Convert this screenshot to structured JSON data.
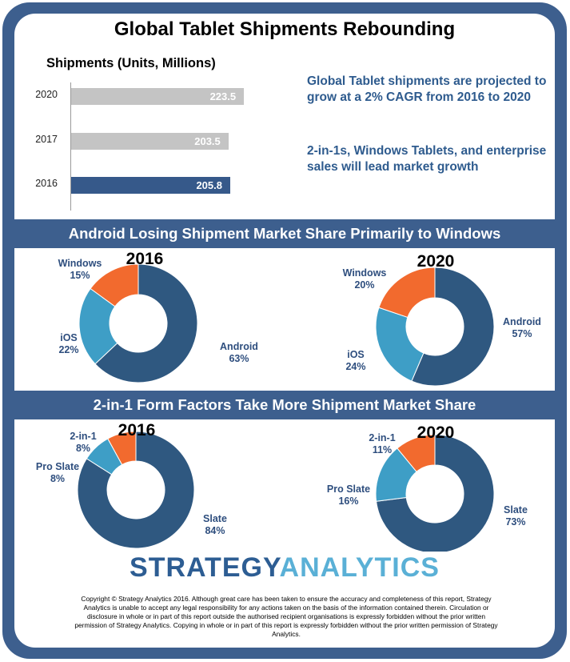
{
  "title": "Global Tablet Shipments Rebounding",
  "shipments": {
    "title": "Shipments (Units, Millions)",
    "bars": [
      {
        "year": "2020",
        "value": 223.5,
        "label": "223.5",
        "color": "#c4c4c4"
      },
      {
        "year": "2017",
        "value": 203.5,
        "label": "203.5",
        "color": "#c4c4c4"
      },
      {
        "year": "2016",
        "value": 205.8,
        "label": "205.8",
        "color": "#36598a"
      }
    ]
  },
  "blurbs": [
    "Global Tablet shipments are projected to grow at a 2% CAGR from 2016 to 2020",
    "2-in-1s, Windows Tablets, and enterprise sales will lead market growth"
  ],
  "section_os": {
    "title": "Android Losing Shipment Market Share Primarily to Windows"
  },
  "section_form": {
    "title": "2-in-1 Form Factors Take More Shipment Market Share"
  },
  "chart_data": [
    {
      "type": "bar",
      "title": "Shipments (Units, Millions)",
      "categories": [
        "2020",
        "2017",
        "2016"
      ],
      "values": [
        223.5,
        203.5,
        205.8
      ]
    },
    {
      "type": "pie",
      "title": "2016",
      "series": [
        {
          "name": "Android",
          "value": 63,
          "label": "63%",
          "color": "#2f5880"
        },
        {
          "name": "iOS",
          "value": 22,
          "label": "22%",
          "color": "#3e9ec6"
        },
        {
          "name": "Windows",
          "value": 15,
          "label": "15%",
          "color": "#f26a2e"
        }
      ]
    },
    {
      "type": "pie",
      "title": "2020",
      "series": [
        {
          "name": "Android",
          "value": 57,
          "label": "57%",
          "color": "#2f5880"
        },
        {
          "name": "iOS",
          "value": 24,
          "label": "24%",
          "color": "#3e9ec6"
        },
        {
          "name": "Windows",
          "value": 20,
          "label": "20%",
          "color": "#f26a2e"
        }
      ]
    },
    {
      "type": "pie",
      "title": "2016",
      "series": [
        {
          "name": "Slate",
          "value": 84,
          "label": "84%",
          "color": "#2f5880"
        },
        {
          "name": "Pro Slate",
          "value": 8,
          "label": "8%",
          "color": "#3e9ec6"
        },
        {
          "name": "2-in-1",
          "value": 8,
          "label": "8%",
          "color": "#f26a2e"
        }
      ]
    },
    {
      "type": "pie",
      "title": "2020",
      "series": [
        {
          "name": "Slate",
          "value": 73,
          "label": "73%",
          "color": "#2f5880"
        },
        {
          "name": "Pro Slate",
          "value": 16,
          "label": "16%",
          "color": "#3e9ec6"
        },
        {
          "name": "2-in-1",
          "value": 11,
          "label": "11%",
          "color": "#f26a2e"
        }
      ]
    }
  ],
  "logo": {
    "part1": "STRATEGY",
    "part2": "ANALYTICS"
  },
  "copyright": "Copyright © Strategy Analytics 2016. Although great care has been taken to ensure the accuracy and completeness of this report, Strategy Analytics is unable to accept any legal responsibility for any actions taken on the basis of the information contained therein. Circulation or disclosure in whole or in part of this report outside the authorised recipient organisations is expressly forbidden without the prior written permission of Strategy Analytics. Copying in whole or in part of this report is expressly forbidden without the prior written permission of Strategy Analytics.",
  "colors": {
    "frame": "#3d5f8e",
    "accent_text": "#2e5b8e",
    "label_text": "#2e4e7e"
  }
}
